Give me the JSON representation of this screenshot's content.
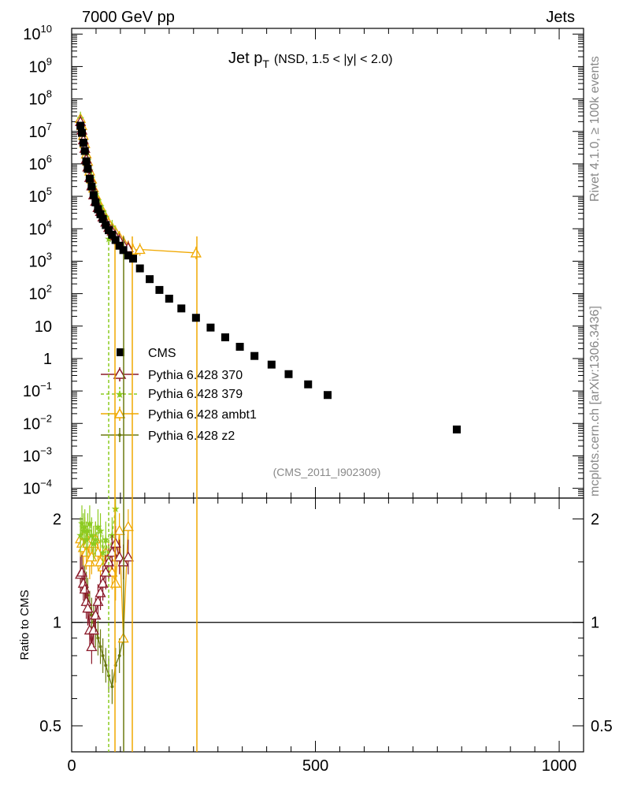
{
  "header": {
    "left": "7000 GeV pp",
    "right": "Jets"
  },
  "side_labels": {
    "rivet": "Rivet 4.1.0, ≥ 100k events",
    "mcplots": "mcplots.cern.ch [arXiv:1306.3436]"
  },
  "chart_data": {
    "type": "scatter",
    "title": "Jet p",
    "title_sub": "T",
    "title_cond": "(NSD, 1.5 < |y| < 2.0)",
    "watermark": "(CMS_2011_I902309)",
    "xlim": [
      0,
      1050
    ],
    "x_ticks": [
      "0",
      "500",
      "1000"
    ],
    "x_tick_values": [
      0,
      500,
      1000
    ],
    "main": {
      "yscale": "log",
      "ylim": [
        5e-05,
        15000000000.0
      ],
      "y_tick_labels": [
        {
          "base": "10",
          "exp": "10",
          "v": 10000000000.0
        },
        {
          "base": "10",
          "exp": "9",
          "v": 1000000000.0
        },
        {
          "base": "10",
          "exp": "8",
          "v": 100000000.0
        },
        {
          "base": "10",
          "exp": "7",
          "v": 10000000.0
        },
        {
          "base": "10",
          "exp": "6",
          "v": 1000000.0
        },
        {
          "base": "10",
          "exp": "5",
          "v": 100000.0
        },
        {
          "base": "10",
          "exp": "4",
          "v": 10000.0
        },
        {
          "base": "10",
          "exp": "3",
          "v": 1000.0
        },
        {
          "base": "10",
          "exp": "2",
          "v": 100.0
        },
        {
          "base": "10",
          "exp": "",
          "v": 10
        },
        {
          "base": "1",
          "exp": "",
          "v": 1
        },
        {
          "base": "10",
          "exp": "−1",
          "v": 0.1
        },
        {
          "base": "10",
          "exp": "−2",
          "v": 0.01
        },
        {
          "base": "10",
          "exp": "−3",
          "v": 0.001
        },
        {
          "base": "10",
          "exp": "−4",
          "v": 0.0001
        }
      ]
    },
    "ratio": {
      "ylabel": "Ratio to CMS",
      "yscale": "log",
      "ylim": [
        0.42,
        2.3
      ],
      "y_tick_labels": [
        {
          "label": "2",
          "v": 2
        },
        {
          "label": "1",
          "v": 1
        },
        {
          "label": "0.5",
          "v": 0.5
        }
      ],
      "reference_line": 1
    },
    "series": [
      {
        "name": "CMS",
        "color": "#000000",
        "marker": "square",
        "x": [
          18,
          21,
          24,
          27,
          30,
          33,
          37,
          41,
          45,
          49,
          54,
          59,
          64,
          70,
          76,
          83,
          90,
          98,
          106,
          116,
          126,
          140,
          160,
          180,
          200,
          225,
          255,
          285,
          315,
          345,
          375,
          410,
          445,
          485,
          525,
          790
        ],
        "y": [
          15000000,
          9000000,
          4500000,
          2500000,
          1200000,
          700000,
          350000,
          200000,
          110000,
          65000,
          40000,
          28000,
          20000,
          13000,
          9000,
          6500,
          4500,
          3000,
          2200,
          1500,
          1200,
          600,
          280,
          130,
          70,
          35,
          18,
          9,
          4.5,
          2.3,
          1.2,
          0.65,
          0.33,
          0.16,
          0.075,
          0.0065
        ],
        "ratio_x": [],
        "ratio_y": []
      },
      {
        "name": "Pythia 6.428 370",
        "color": "#8b1a2a",
        "marker": "triangle-open",
        "x": [
          18,
          21,
          24,
          27,
          30,
          33,
          37,
          41,
          45,
          49,
          54,
          59,
          64,
          70,
          76,
          83,
          90,
          98,
          106,
          116
        ],
        "y": [
          20000000,
          11000000,
          5500000,
          3000000,
          1400000,
          800000,
          380000,
          210000,
          110000,
          70000,
          45000,
          34000,
          23000,
          16000,
          11000,
          8500,
          6000,
          4500,
          3300,
          2600
        ],
        "ratio_x": [
          18,
          21,
          24,
          27,
          30,
          33,
          37,
          41,
          45,
          49,
          54,
          59,
          64,
          70,
          76,
          83,
          90,
          98,
          106,
          116
        ],
        "ratio_y": [
          1.38,
          1.4,
          1.3,
          1.25,
          1.15,
          1.1,
          0.95,
          0.85,
          0.95,
          1.05,
          1.15,
          1.22,
          1.3,
          1.4,
          1.5,
          1.6,
          1.7,
          1.55,
          1.5,
          1.55
        ]
      },
      {
        "name": "Pythia 6.428 379",
        "color": "#8ccb20",
        "marker": "star",
        "x": [
          18,
          21,
          24,
          27,
          30,
          33,
          37,
          41,
          45,
          49,
          54,
          59,
          64,
          70,
          76,
          83,
          90
        ],
        "y": [
          26000000,
          16000000,
          8000000,
          4500000,
          2200000,
          1300000,
          650000,
          380000,
          200000,
          120000,
          75000,
          52000,
          35000,
          24000,
          5000,
          12000,
          7000
        ],
        "ratio_x": [
          18,
          21,
          24,
          27,
          30,
          33,
          37,
          41,
          45,
          49,
          54,
          59,
          64,
          70,
          76,
          83,
          90
        ],
        "ratio_y": [
          1.8,
          1.95,
          1.85,
          1.9,
          1.75,
          1.85,
          1.95,
          1.8,
          1.7,
          1.75,
          1.9,
          1.85,
          1.6,
          1.75,
          1.5,
          1.8,
          2.15
        ]
      },
      {
        "name": "Pythia 6.428 ambt1",
        "color": "#f0a800",
        "marker": "triangle-open",
        "x": [
          18,
          21,
          24,
          27,
          30,
          33,
          37,
          41,
          45,
          49,
          54,
          59,
          64,
          70,
          76,
          83,
          90,
          98,
          106,
          116,
          126,
          140,
          255
        ],
        "y": [
          25000000,
          15000000,
          7500000,
          4200000,
          2000000,
          1200000,
          600000,
          340000,
          180000,
          110000,
          70000,
          48000,
          33000,
          22000,
          15000,
          11000,
          8000,
          5500,
          4000,
          2800,
          2200,
          2300,
          1800
        ],
        "ratio_x": [
          18,
          21,
          24,
          27,
          30,
          33,
          37,
          41,
          45,
          49,
          54,
          59,
          64,
          70,
          76,
          83,
          90,
          98,
          106,
          116
        ],
        "ratio_y": [
          1.75,
          1.7,
          1.65,
          1.8,
          1.6,
          1.7,
          1.5,
          1.55,
          1.7,
          1.75,
          1.6,
          1.5,
          1.45,
          1.6,
          1.55,
          1.4,
          1.3,
          1.85,
          0.9,
          1.9
        ]
      },
      {
        "name": "Pythia 6.428 z2",
        "color": "#6b7a10",
        "marker": "dot",
        "x": [
          18,
          21,
          24,
          27,
          30,
          33,
          37,
          41,
          45,
          49,
          54,
          59,
          64,
          70,
          76,
          83,
          90,
          98,
          106
        ],
        "y": [
          21000000,
          12000000,
          6000000,
          3300000,
          1500000,
          900000,
          420000,
          230000,
          125000,
          80000,
          50000,
          35000,
          24000,
          16000,
          11000,
          8000,
          5500,
          4000,
          3000
        ],
        "ratio_x": [
          18,
          21,
          24,
          27,
          30,
          33,
          37,
          41,
          45,
          49,
          54,
          59,
          64,
          70,
          76,
          83,
          90,
          98,
          106
        ],
        "ratio_y": [
          1.4,
          1.42,
          1.35,
          1.3,
          1.25,
          1.2,
          1.1,
          1.05,
          1.0,
          0.95,
          0.9,
          0.85,
          0.8,
          0.75,
          0.7,
          0.65,
          0.75,
          0.8,
          0.9
        ]
      }
    ]
  }
}
